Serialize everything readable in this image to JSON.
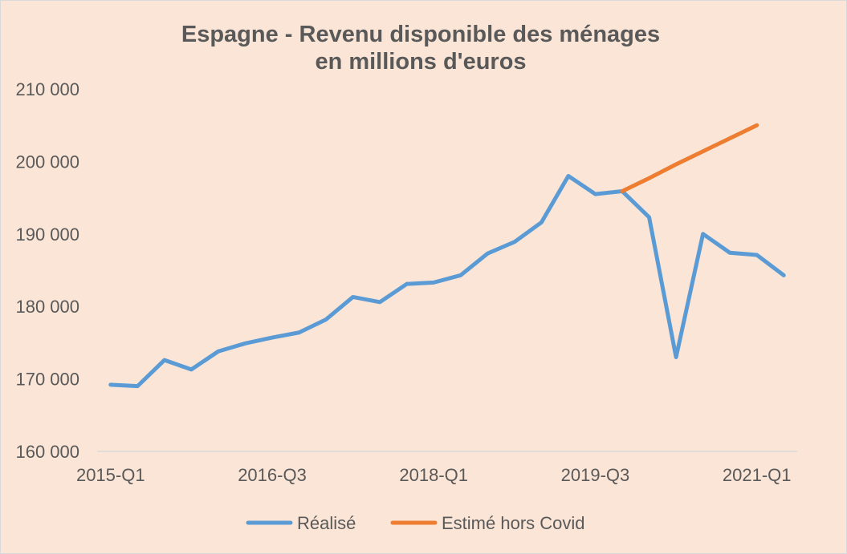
{
  "chart_data": {
    "type": "line",
    "title": [
      "Espagne - Revenu disponible des ménages",
      "en millions d'euros"
    ],
    "categories": [
      "2015-Q1",
      "2015-Q2",
      "2015-Q3",
      "2015-Q4",
      "2016-Q1",
      "2016-Q2",
      "2016-Q3",
      "2016-Q4",
      "2017-Q1",
      "2017-Q2",
      "2017-Q3",
      "2017-Q4",
      "2018-Q1",
      "2018-Q2",
      "2018-Q3",
      "2018-Q4",
      "2019-Q1",
      "2019-Q2",
      "2019-Q3",
      "2019-Q4",
      "2020-Q1",
      "2020-Q2",
      "2020-Q3",
      "2020-Q4",
      "2021-Q1",
      "2021-Q2"
    ],
    "x_tick_labels": [
      "2015-Q1",
      "2016-Q3",
      "2018-Q1",
      "2019-Q3",
      "2021-Q1"
    ],
    "y_tick_labels": [
      "160 000",
      "170 000",
      "180 000",
      "190 000",
      "200 000",
      "210 000"
    ],
    "ylim": [
      160000,
      210000
    ],
    "grid": "horizontal baseline only",
    "legend_position": "bottom",
    "series": [
      {
        "name": "Réalisé",
        "color": "#5b9bd5",
        "values": [
          169200,
          169000,
          172600,
          171300,
          173800,
          174900,
          175700,
          176400,
          178200,
          181300,
          180600,
          183100,
          183300,
          184300,
          187300,
          188900,
          191600,
          198000,
          195500,
          195900,
          192300,
          173000,
          190000,
          187400,
          187100,
          184300
        ]
      },
      {
        "name": "Estimé hors Covid",
        "color": "#ed7d31",
        "values": [
          null,
          null,
          null,
          null,
          null,
          null,
          null,
          null,
          null,
          null,
          null,
          null,
          null,
          null,
          null,
          null,
          null,
          null,
          null,
          195900,
          197700,
          199600,
          201400,
          203200,
          205000,
          null
        ]
      }
    ]
  }
}
